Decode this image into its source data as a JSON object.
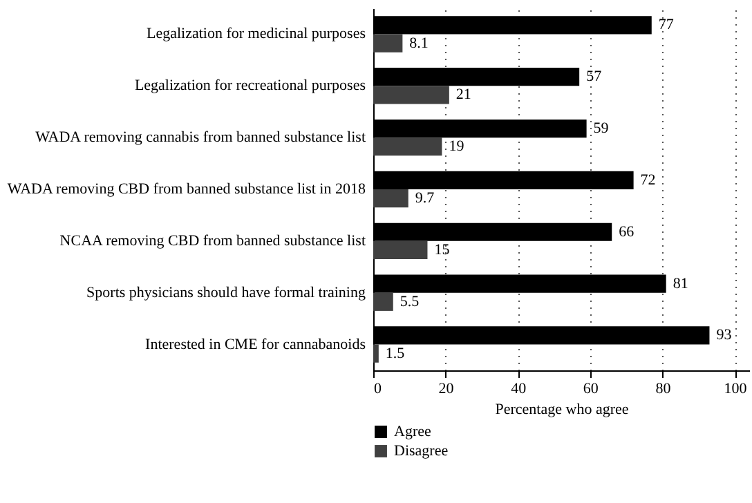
{
  "chart_data": {
    "type": "bar",
    "orientation": "horizontal",
    "xlabel": "Percentage who agree",
    "categories": [
      "Legalization for medicinal purposes",
      "Legalization for recreational purposes",
      "WADA removing cannabis from banned substance list",
      "WADA removing CBD from banned substance list in 2018",
      "NCAA removing CBD from banned substance list",
      "Sports physicians should have formal training",
      "Interested in CME for cannabanoids"
    ],
    "series": [
      {
        "name": "Agree",
        "color": "#000000",
        "values": [
          77,
          57,
          59,
          72,
          66,
          81,
          93
        ]
      },
      {
        "name": "Disagree",
        "color": "#404040",
        "values": [
          8.1,
          21,
          19,
          9.7,
          15,
          5.5,
          1.5
        ]
      }
    ],
    "xlim": [
      0,
      104
    ],
    "xticks": [
      0,
      20,
      40,
      60,
      80,
      100
    ],
    "grid": "x",
    "legend": "bottom",
    "data_labels": true
  }
}
